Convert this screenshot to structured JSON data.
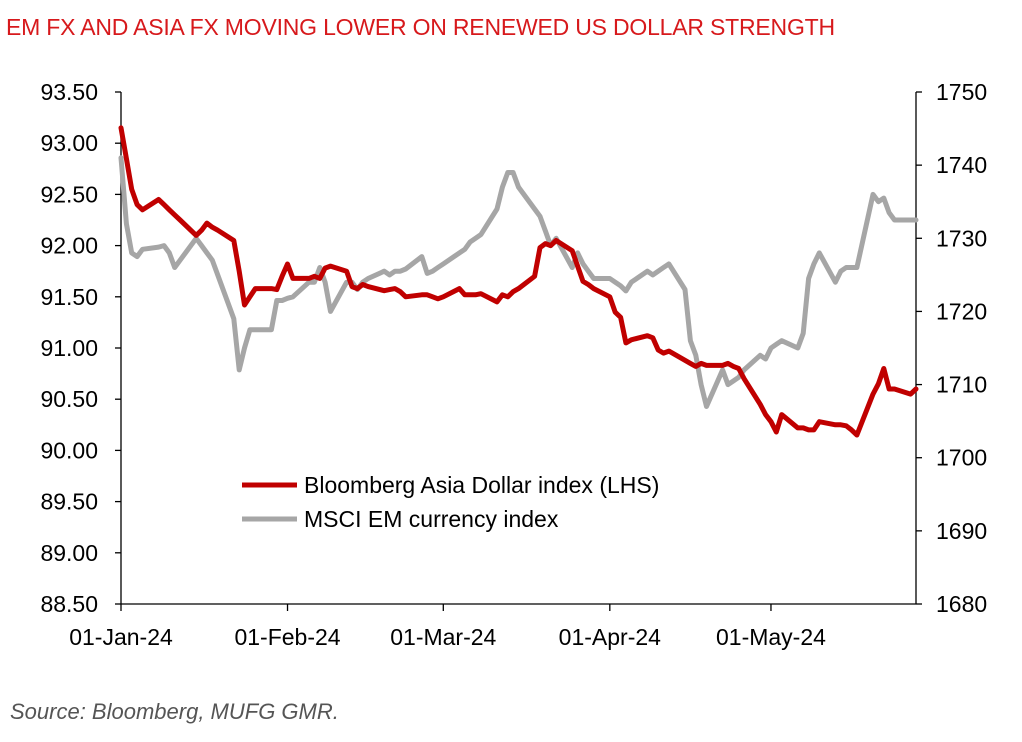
{
  "title": "EM FX AND ASIA FX MOVING LOWER ON RENEWED US DOLLAR STRENGTH",
  "source": "Source: Bloomberg, MUFG GMR.",
  "chart_data": {
    "type": "line",
    "title": "EM FX AND ASIA FX MOVING LOWER ON RENEWED US DOLLAR STRENGTH",
    "grid": false,
    "legend_position": "bottom-center",
    "x_ticks": [
      "01-Jan-24",
      "01-Feb-24",
      "01-Mar-24",
      "01-Apr-24",
      "01-May-24"
    ],
    "x_range": [
      "2024-01-01",
      "2024-05-28"
    ],
    "y_left": {
      "range": [
        88.5,
        93.5
      ],
      "ticks": [
        "93.50",
        "93.00",
        "92.50",
        "92.00",
        "91.50",
        "91.00",
        "90.50",
        "90.00",
        "89.50",
        "89.00",
        "88.50"
      ]
    },
    "y_right": {
      "range": [
        1680,
        1750
      ],
      "ticks": [
        "1750",
        "1740",
        "1730",
        "1720",
        "1710",
        "1700",
        "1690",
        "1680"
      ]
    },
    "series": [
      {
        "name": "Bloomberg Asia Dollar index (LHS)",
        "axis": "left",
        "color": "#c00000",
        "points": [
          [
            "2024-01-01",
            93.15
          ],
          [
            "2024-01-02",
            92.85
          ],
          [
            "2024-01-03",
            92.55
          ],
          [
            "2024-01-04",
            92.4
          ],
          [
            "2024-01-05",
            92.35
          ],
          [
            "2024-01-08",
            92.45
          ],
          [
            "2024-01-09",
            92.4
          ],
          [
            "2024-01-10",
            92.35
          ],
          [
            "2024-01-11",
            92.3
          ],
          [
            "2024-01-12",
            92.25
          ],
          [
            "2024-01-15",
            92.1
          ],
          [
            "2024-01-16",
            92.15
          ],
          [
            "2024-01-17",
            92.22
          ],
          [
            "2024-01-18",
            92.18
          ],
          [
            "2024-01-19",
            92.15
          ],
          [
            "2024-01-22",
            92.05
          ],
          [
            "2024-01-23",
            91.75
          ],
          [
            "2024-01-24",
            91.42
          ],
          [
            "2024-01-25",
            91.5
          ],
          [
            "2024-01-26",
            91.58
          ],
          [
            "2024-01-29",
            91.58
          ],
          [
            "2024-01-30",
            91.57
          ],
          [
            "2024-01-31",
            91.7
          ],
          [
            "2024-02-01",
            91.82
          ],
          [
            "2024-02-02",
            91.68
          ],
          [
            "2024-02-05",
            91.68
          ],
          [
            "2024-02-06",
            91.7
          ],
          [
            "2024-02-07",
            91.68
          ],
          [
            "2024-02-08",
            91.78
          ],
          [
            "2024-02-09",
            91.8
          ],
          [
            "2024-02-12",
            91.75
          ],
          [
            "2024-02-13",
            91.6
          ],
          [
            "2024-02-14",
            91.58
          ],
          [
            "2024-02-15",
            91.62
          ],
          [
            "2024-02-16",
            91.6
          ],
          [
            "2024-02-19",
            91.56
          ],
          [
            "2024-02-20",
            91.57
          ],
          [
            "2024-02-21",
            91.58
          ],
          [
            "2024-02-22",
            91.55
          ],
          [
            "2024-02-23",
            91.5
          ],
          [
            "2024-02-26",
            91.52
          ],
          [
            "2024-02-27",
            91.52
          ],
          [
            "2024-02-28",
            91.5
          ],
          [
            "2024-02-29",
            91.48
          ],
          [
            "2024-03-01",
            91.5
          ],
          [
            "2024-03-04",
            91.58
          ],
          [
            "2024-03-05",
            91.52
          ],
          [
            "2024-03-06",
            91.52
          ],
          [
            "2024-03-07",
            91.52
          ],
          [
            "2024-03-08",
            91.53
          ],
          [
            "2024-03-11",
            91.45
          ],
          [
            "2024-03-12",
            91.52
          ],
          [
            "2024-03-13",
            91.5
          ],
          [
            "2024-03-14",
            91.55
          ],
          [
            "2024-03-15",
            91.58
          ],
          [
            "2024-03-18",
            91.7
          ],
          [
            "2024-03-19",
            91.98
          ],
          [
            "2024-03-20",
            92.02
          ],
          [
            "2024-03-21",
            92.0
          ],
          [
            "2024-03-22",
            92.05
          ],
          [
            "2024-03-25",
            91.95
          ],
          [
            "2024-03-26",
            91.8
          ],
          [
            "2024-03-27",
            91.65
          ],
          [
            "2024-03-28",
            91.62
          ],
          [
            "2024-03-29",
            91.58
          ],
          [
            "2024-04-01",
            91.5
          ],
          [
            "2024-04-02",
            91.35
          ],
          [
            "2024-04-03",
            91.3
          ],
          [
            "2024-04-04",
            91.05
          ],
          [
            "2024-04-05",
            91.08
          ],
          [
            "2024-04-08",
            91.12
          ],
          [
            "2024-04-09",
            91.1
          ],
          [
            "2024-04-10",
            90.98
          ],
          [
            "2024-04-11",
            90.95
          ],
          [
            "2024-04-12",
            90.97
          ],
          [
            "2024-04-15",
            90.88
          ],
          [
            "2024-04-16",
            90.85
          ],
          [
            "2024-04-17",
            90.82
          ],
          [
            "2024-04-18",
            90.85
          ],
          [
            "2024-04-19",
            90.83
          ],
          [
            "2024-04-22",
            90.83
          ],
          [
            "2024-04-23",
            90.85
          ],
          [
            "2024-04-24",
            90.82
          ],
          [
            "2024-04-25",
            90.8
          ],
          [
            "2024-04-26",
            90.7
          ],
          [
            "2024-04-29",
            90.45
          ],
          [
            "2024-04-30",
            90.35
          ],
          [
            "2024-05-01",
            90.28
          ],
          [
            "2024-05-02",
            90.18
          ],
          [
            "2024-05-03",
            90.35
          ],
          [
            "2024-05-06",
            90.22
          ],
          [
            "2024-05-07",
            90.22
          ],
          [
            "2024-05-08",
            90.2
          ],
          [
            "2024-05-09",
            90.2
          ],
          [
            "2024-05-10",
            90.28
          ],
          [
            "2024-05-13",
            90.25
          ],
          [
            "2024-05-14",
            90.25
          ],
          [
            "2024-05-15",
            90.24
          ],
          [
            "2024-05-16",
            90.2
          ],
          [
            "2024-05-17",
            90.15
          ],
          [
            "2024-05-20",
            90.55
          ],
          [
            "2024-05-21",
            90.65
          ],
          [
            "2024-05-22",
            90.8
          ],
          [
            "2024-05-23",
            90.6
          ],
          [
            "2024-05-24",
            90.6
          ],
          [
            "2024-05-27",
            90.55
          ],
          [
            "2024-05-28",
            90.6
          ]
        ]
      },
      {
        "name": "MSCI EM currency index",
        "axis": "right",
        "color": "#a6a6a6",
        "points": [
          [
            "2024-01-01",
            1741
          ],
          [
            "2024-01-02",
            1732
          ],
          [
            "2024-01-03",
            1728
          ],
          [
            "2024-01-04",
            1727.5
          ],
          [
            "2024-01-05",
            1728.5
          ],
          [
            "2024-01-08",
            1728.8
          ],
          [
            "2024-01-09",
            1729
          ],
          [
            "2024-01-10",
            1728
          ],
          [
            "2024-01-11",
            1726
          ],
          [
            "2024-01-12",
            1727
          ],
          [
            "2024-01-15",
            1730
          ],
          [
            "2024-01-16",
            1729
          ],
          [
            "2024-01-17",
            1728
          ],
          [
            "2024-01-18",
            1727
          ],
          [
            "2024-01-19",
            1725
          ],
          [
            "2024-01-22",
            1719
          ],
          [
            "2024-01-23",
            1712
          ],
          [
            "2024-01-24",
            1715
          ],
          [
            "2024-01-25",
            1717.5
          ],
          [
            "2024-01-26",
            1717.5
          ],
          [
            "2024-01-29",
            1717.5
          ],
          [
            "2024-01-30",
            1721.5
          ],
          [
            "2024-01-31",
            1721.5
          ],
          [
            "2024-02-01",
            1721.8
          ],
          [
            "2024-02-02",
            1722
          ],
          [
            "2024-02-05",
            1724
          ],
          [
            "2024-02-06",
            1724
          ],
          [
            "2024-02-07",
            1726
          ],
          [
            "2024-02-08",
            1724
          ],
          [
            "2024-02-09",
            1720
          ],
          [
            "2024-02-12",
            1724
          ],
          [
            "2024-02-13",
            1724
          ],
          [
            "2024-02-14",
            1723
          ],
          [
            "2024-02-15",
            1724
          ],
          [
            "2024-02-16",
            1724.5
          ],
          [
            "2024-02-19",
            1725.5
          ],
          [
            "2024-02-20",
            1725
          ],
          [
            "2024-02-21",
            1725.5
          ],
          [
            "2024-02-22",
            1725.5
          ],
          [
            "2024-02-23",
            1725.8
          ],
          [
            "2024-02-26",
            1727.5
          ],
          [
            "2024-02-27",
            1725.2
          ],
          [
            "2024-02-28",
            1725.5
          ],
          [
            "2024-02-29",
            1726
          ],
          [
            "2024-03-01",
            1726.5
          ],
          [
            "2024-03-04",
            1728
          ],
          [
            "2024-03-05",
            1728.5
          ],
          [
            "2024-03-06",
            1729.5
          ],
          [
            "2024-03-07",
            1730
          ],
          [
            "2024-03-08",
            1730.5
          ],
          [
            "2024-03-11",
            1734
          ],
          [
            "2024-03-12",
            1737
          ],
          [
            "2024-03-13",
            1739
          ],
          [
            "2024-03-14",
            1739
          ],
          [
            "2024-03-15",
            1737
          ],
          [
            "2024-03-18",
            1734
          ],
          [
            "2024-03-19",
            1733
          ],
          [
            "2024-03-20",
            1731
          ],
          [
            "2024-03-21",
            1729
          ],
          [
            "2024-03-22",
            1730
          ],
          [
            "2024-03-25",
            1726
          ],
          [
            "2024-03-26",
            1728
          ],
          [
            "2024-03-27",
            1726.5
          ],
          [
            "2024-03-28",
            1725.5
          ],
          [
            "2024-03-29",
            1724.5
          ],
          [
            "2024-04-01",
            1724.5
          ],
          [
            "2024-04-02",
            1724
          ],
          [
            "2024-04-03",
            1723.5
          ],
          [
            "2024-04-04",
            1722.8
          ],
          [
            "2024-04-05",
            1724
          ],
          [
            "2024-04-08",
            1725.5
          ],
          [
            "2024-04-09",
            1725
          ],
          [
            "2024-04-10",
            1725.5
          ],
          [
            "2024-04-11",
            1726
          ],
          [
            "2024-04-12",
            1726.5
          ],
          [
            "2024-04-15",
            1723
          ],
          [
            "2024-04-16",
            1716
          ],
          [
            "2024-04-17",
            1714
          ],
          [
            "2024-04-18",
            1710
          ],
          [
            "2024-04-19",
            1707
          ],
          [
            "2024-04-22",
            1712
          ],
          [
            "2024-04-23",
            1710
          ],
          [
            "2024-04-24",
            1710.5
          ],
          [
            "2024-04-25",
            1711
          ],
          [
            "2024-04-26",
            1712
          ],
          [
            "2024-04-29",
            1714
          ],
          [
            "2024-04-30",
            1713.5
          ],
          [
            "2024-05-01",
            1715
          ],
          [
            "2024-05-02",
            1715.5
          ],
          [
            "2024-05-03",
            1716
          ],
          [
            "2024-05-06",
            1715
          ],
          [
            "2024-05-07",
            1717
          ],
          [
            "2024-05-08",
            1724.5
          ],
          [
            "2024-05-09",
            1726.5
          ],
          [
            "2024-05-10",
            1728
          ],
          [
            "2024-05-13",
            1724
          ],
          [
            "2024-05-14",
            1725.5
          ],
          [
            "2024-05-15",
            1726
          ],
          [
            "2024-05-16",
            1726
          ],
          [
            "2024-05-17",
            1726
          ],
          [
            "2024-05-20",
            1736
          ],
          [
            "2024-05-21",
            1735
          ],
          [
            "2024-05-22",
            1735.5
          ],
          [
            "2024-05-23",
            1733.5
          ],
          [
            "2024-05-24",
            1732.5
          ],
          [
            "2024-05-27",
            1732.5
          ],
          [
            "2024-05-28",
            1732.5
          ]
        ]
      }
    ]
  }
}
